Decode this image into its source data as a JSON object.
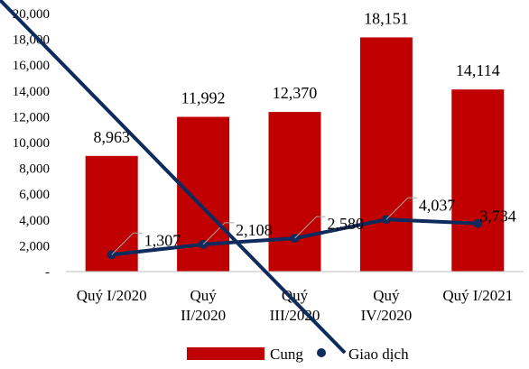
{
  "chart_data": {
    "type": "bar",
    "categories": [
      [
        "Quý I/2020"
      ],
      [
        "Quý",
        "II/2020"
      ],
      [
        "Quý",
        "III/2020"
      ],
      [
        "Quý",
        "IV/2020"
      ],
      [
        "Quý I/2021"
      ]
    ],
    "series": [
      {
        "name": "Cung",
        "type": "bar",
        "values": [
          8963,
          11992,
          12370,
          18151,
          14114
        ],
        "labels": [
          "8,963",
          "11,992",
          "12,370",
          "18,151",
          "14,114"
        ],
        "color": "#c00000"
      },
      {
        "name": "Giao dịch",
        "type": "line",
        "values": [
          1307,
          2108,
          2580,
          4037,
          3734
        ],
        "labels": [
          "1,307",
          "2,108",
          "2,580",
          "4,037",
          "3,734"
        ],
        "color": "#0f2a5c"
      }
    ],
    "y_ticks": [
      0,
      2000,
      4000,
      6000,
      8000,
      10000,
      12000,
      14000,
      16000,
      18000,
      20000
    ],
    "y_tick_labels": [
      "-",
      "2,000",
      "4,000",
      "6,000",
      "8,000",
      "10,000",
      "12,000",
      "14,000",
      "16,000",
      "18,000",
      "20,000"
    ],
    "ylim": [
      0,
      20000
    ],
    "grid": false,
    "legend_position": "bottom"
  }
}
